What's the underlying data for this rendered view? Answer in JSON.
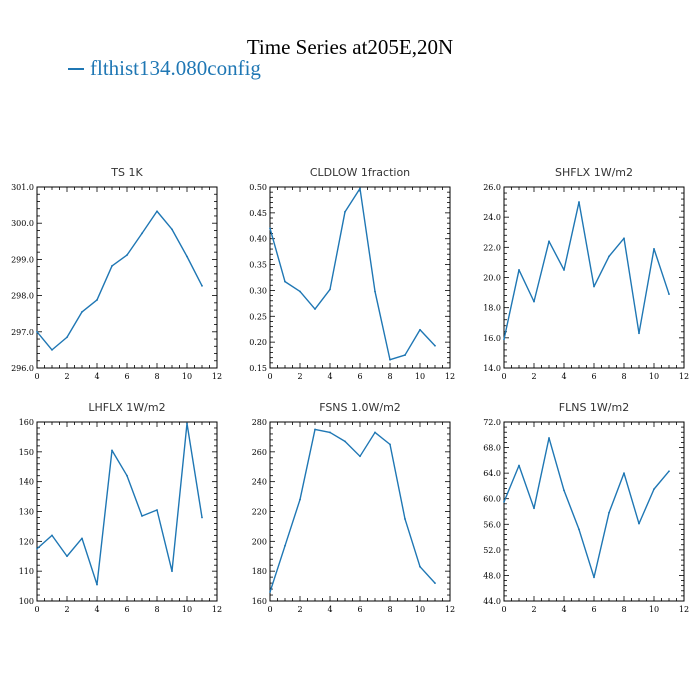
{
  "figure": {
    "title": "Time Series at205E,20N",
    "legend_label": "flthist134.080config",
    "series_color": "#1f77b4"
  },
  "chart_data": [
    {
      "type": "line",
      "title": "TS 1K",
      "x": [
        0,
        1,
        2,
        3,
        4,
        5,
        6,
        7,
        8,
        9,
        10,
        11
      ],
      "series": [
        {
          "values": [
            297.0,
            296.5,
            296.85,
            297.55,
            297.88,
            298.82,
            299.12,
            299.72,
            300.33,
            299.83,
            299.08,
            298.27
          ]
        }
      ],
      "xlim": [
        0,
        12
      ],
      "ylim": [
        296.0,
        301.0
      ],
      "xticks": [
        "0",
        "2",
        "4",
        "6",
        "8",
        "10",
        "12"
      ],
      "yticks": [
        "296.0",
        "297.0",
        "298.0",
        "299.0",
        "300.0",
        "301.0"
      ]
    },
    {
      "type": "line",
      "title": "CLDLOW 1fraction",
      "x": [
        0,
        1,
        2,
        3,
        4,
        5,
        6,
        7,
        8,
        9,
        10,
        11
      ],
      "series": [
        {
          "values": [
            0.42,
            0.317,
            0.298,
            0.264,
            0.302,
            0.452,
            0.497,
            0.298,
            0.166,
            0.175,
            0.224,
            0.193
          ]
        }
      ],
      "xlim": [
        0,
        12
      ],
      "ylim": [
        0.15,
        0.5
      ],
      "xticks": [
        "0",
        "2",
        "4",
        "6",
        "8",
        "10",
        "12"
      ],
      "yticks": [
        "0.15",
        "0.20",
        "0.25",
        "0.30",
        "0.35",
        "0.40",
        "0.45",
        "0.50"
      ]
    },
    {
      "type": "line",
      "title": "SHFLX 1W/m2",
      "x": [
        0,
        1,
        2,
        3,
        4,
        5,
        6,
        7,
        8,
        9,
        10,
        11
      ],
      "series": [
        {
          "values": [
            15.9,
            20.5,
            18.4,
            22.4,
            20.5,
            25.0,
            19.4,
            21.4,
            22.6,
            16.3,
            21.9,
            18.9
          ]
        }
      ],
      "xlim": [
        0,
        12
      ],
      "ylim": [
        14.0,
        26.0
      ],
      "xticks": [
        "0",
        "2",
        "4",
        "6",
        "8",
        "10",
        "12"
      ],
      "yticks": [
        "14.0",
        "16.0",
        "18.0",
        "20.0",
        "22.0",
        "24.0",
        "26.0"
      ]
    },
    {
      "type": "line",
      "title": "LHFLX 1W/m2",
      "x": [
        0,
        1,
        2,
        3,
        4,
        5,
        6,
        7,
        8,
        9,
        10,
        11
      ],
      "series": [
        {
          "values": [
            117.5,
            122.0,
            115.0,
            121.0,
            105.5,
            150.5,
            142.0,
            128.5,
            130.5,
            110.0,
            159.5,
            128.0
          ]
        }
      ],
      "xlim": [
        0,
        12
      ],
      "ylim": [
        100,
        160
      ],
      "xticks": [
        "0",
        "2",
        "4",
        "6",
        "8",
        "10",
        "12"
      ],
      "yticks": [
        "100",
        "110",
        "120",
        "130",
        "140",
        "150",
        "160"
      ]
    },
    {
      "type": "line",
      "title": "FSNS 1.0W/m2",
      "x": [
        0,
        1,
        2,
        3,
        4,
        5,
        6,
        7,
        8,
        9,
        10,
        11
      ],
      "series": [
        {
          "values": [
            166,
            197,
            228,
            275,
            273,
            267,
            257,
            273,
            265,
            215,
            183,
            172
          ]
        }
      ],
      "xlim": [
        0,
        12
      ],
      "ylim": [
        160,
        280
      ],
      "xticks": [
        "0",
        "2",
        "4",
        "6",
        "8",
        "10",
        "12"
      ],
      "yticks": [
        "160",
        "180",
        "200",
        "220",
        "240",
        "260",
        "280"
      ]
    },
    {
      "type": "line",
      "title": "FLNS 1W/m2",
      "x": [
        0,
        1,
        2,
        3,
        4,
        5,
        6,
        7,
        8,
        9,
        10,
        11
      ],
      "series": [
        {
          "values": [
            59.5,
            65.2,
            58.5,
            69.5,
            61.3,
            55.2,
            47.7,
            57.8,
            64.0,
            56.1,
            61.5,
            64.3
          ]
        }
      ],
      "xlim": [
        0,
        12
      ],
      "ylim": [
        44.0,
        72.0
      ],
      "xticks": [
        "0",
        "2",
        "4",
        "6",
        "8",
        "10",
        "12"
      ],
      "yticks": [
        "44.0",
        "48.0",
        "52.0",
        "56.0",
        "60.0",
        "64.0",
        "68.0",
        "72.0"
      ]
    }
  ]
}
